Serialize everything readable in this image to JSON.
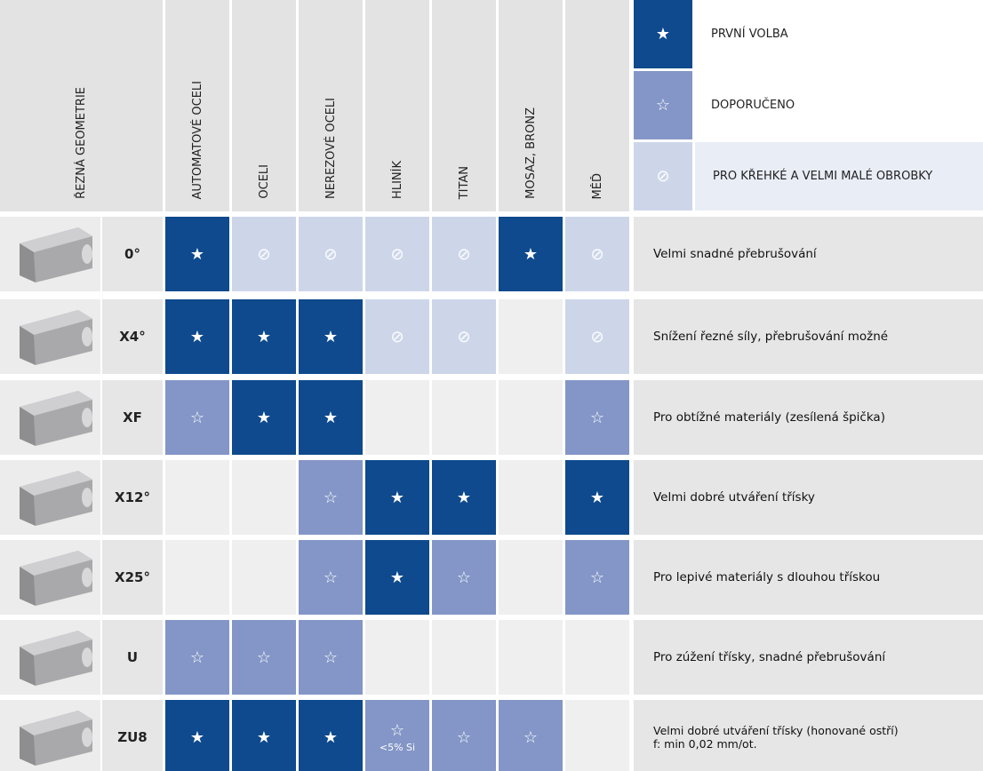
{
  "header": {
    "geometry": "ŘEZNÁ GEOMETRIE",
    "materials": [
      "AUTOMATOVÉ OCELI",
      "OCELI",
      "NEREZOVÉ OCELI",
      "HLINÍK",
      "TITAN",
      "MOSAZ, BRONZ",
      "MĚĎ"
    ]
  },
  "legend": [
    {
      "symbol": "★",
      "label": "PRVNÍ VOLBA"
    },
    {
      "symbol": "☆",
      "label": "DOPORUČENO"
    },
    {
      "symbol": "⊘",
      "label": "PRO KŘEHKÉ A VELMI MALÉ OBROBKY"
    }
  ],
  "rows": [
    {
      "geometry": "0°",
      "cells": [
        "★",
        "⊘",
        "⊘",
        "⊘",
        "⊘",
        "★",
        "⊘"
      ],
      "description": [
        "Velmi snadné přebrušování"
      ]
    },
    {
      "geometry": "X4°",
      "cells": [
        "★",
        "★",
        "★",
        "⊘",
        "⊘",
        null,
        "⊘"
      ],
      "description": [
        "Snížení řezné síly, přebrušování možné"
      ]
    },
    {
      "geometry": "XF",
      "cells": [
        "☆",
        "★",
        "★",
        null,
        null,
        null,
        "☆"
      ],
      "description": [
        "Pro obtížné materiály (zesílená špička)"
      ]
    },
    {
      "geometry": "X12°",
      "cells": [
        null,
        null,
        "☆",
        "★",
        "★",
        null,
        "★"
      ],
      "description": [
        "Velmi dobré utváření třísky"
      ]
    },
    {
      "geometry": "X25°",
      "cells": [
        null,
        null,
        "☆",
        "★",
        "☆",
        null,
        "☆"
      ],
      "description": [
        "Pro lepivé materiály s dlouhou třískou"
      ]
    },
    {
      "geometry": "U",
      "cells": [
        "☆",
        "☆",
        "☆",
        null,
        null,
        null,
        null
      ],
      "description": [
        "Pro zúžení třísky, snadné přebrušování"
      ]
    },
    {
      "geometry": "ZU8",
      "cells": [
        "★",
        "★",
        "★",
        {
          "symbol": "☆",
          "note": "<5% Si"
        },
        "☆",
        "☆",
        null
      ],
      "description": [
        "Velmi dobré utváření třísky (honované ostří)",
        "f: min 0,02 mm/ot."
      ]
    }
  ]
}
